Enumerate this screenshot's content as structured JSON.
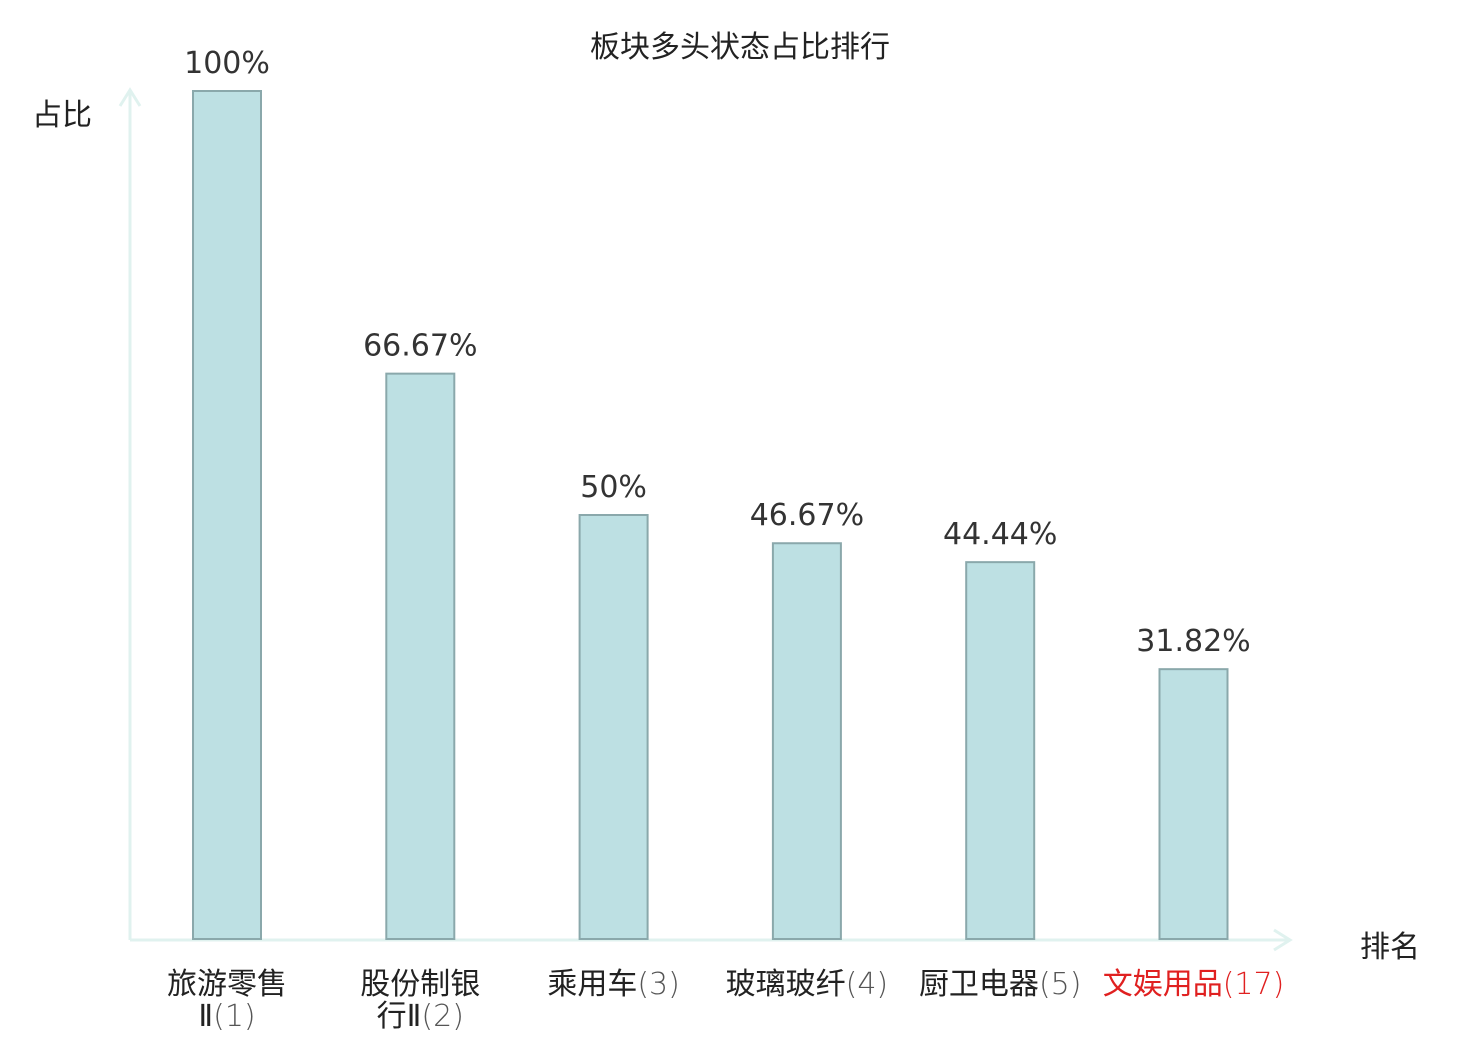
{
  "chart_data": {
    "type": "bar",
    "title": "板块多头状态占比排行",
    "ylabel": "占比",
    "xlabel": "排名",
    "ylim": [
      0,
      100
    ],
    "grid": false,
    "categories": [
      {
        "name": [
          "旅游零售",
          "Ⅱ"
        ],
        "rank": "(1)",
        "highlight": false
      },
      {
        "name": [
          "股份制银",
          "行Ⅱ"
        ],
        "rank": "(2)",
        "highlight": false
      },
      {
        "name": [
          "乘用车"
        ],
        "rank": "(3)",
        "highlight": false
      },
      {
        "name": [
          "玻璃玻纤"
        ],
        "rank": "(4)",
        "highlight": false
      },
      {
        "name": [
          "厨卫电器"
        ],
        "rank": "(5)",
        "highlight": false
      },
      {
        "name": [
          "文娱用品"
        ],
        "rank": "(17)",
        "highlight": true
      }
    ],
    "values": [
      100,
      66.67,
      50,
      46.67,
      44.44,
      31.82
    ],
    "value_labels": [
      "100%",
      "66.67%",
      "50%",
      "46.67%",
      "44.44%",
      "31.82%"
    ]
  },
  "colors": {
    "bar_fill": "#bde0e3",
    "bar_stroke": "#8aa8ab",
    "axis": "#e0f2ef",
    "text": "#333333",
    "rank_text": "#555555",
    "highlight": "#e02020"
  }
}
